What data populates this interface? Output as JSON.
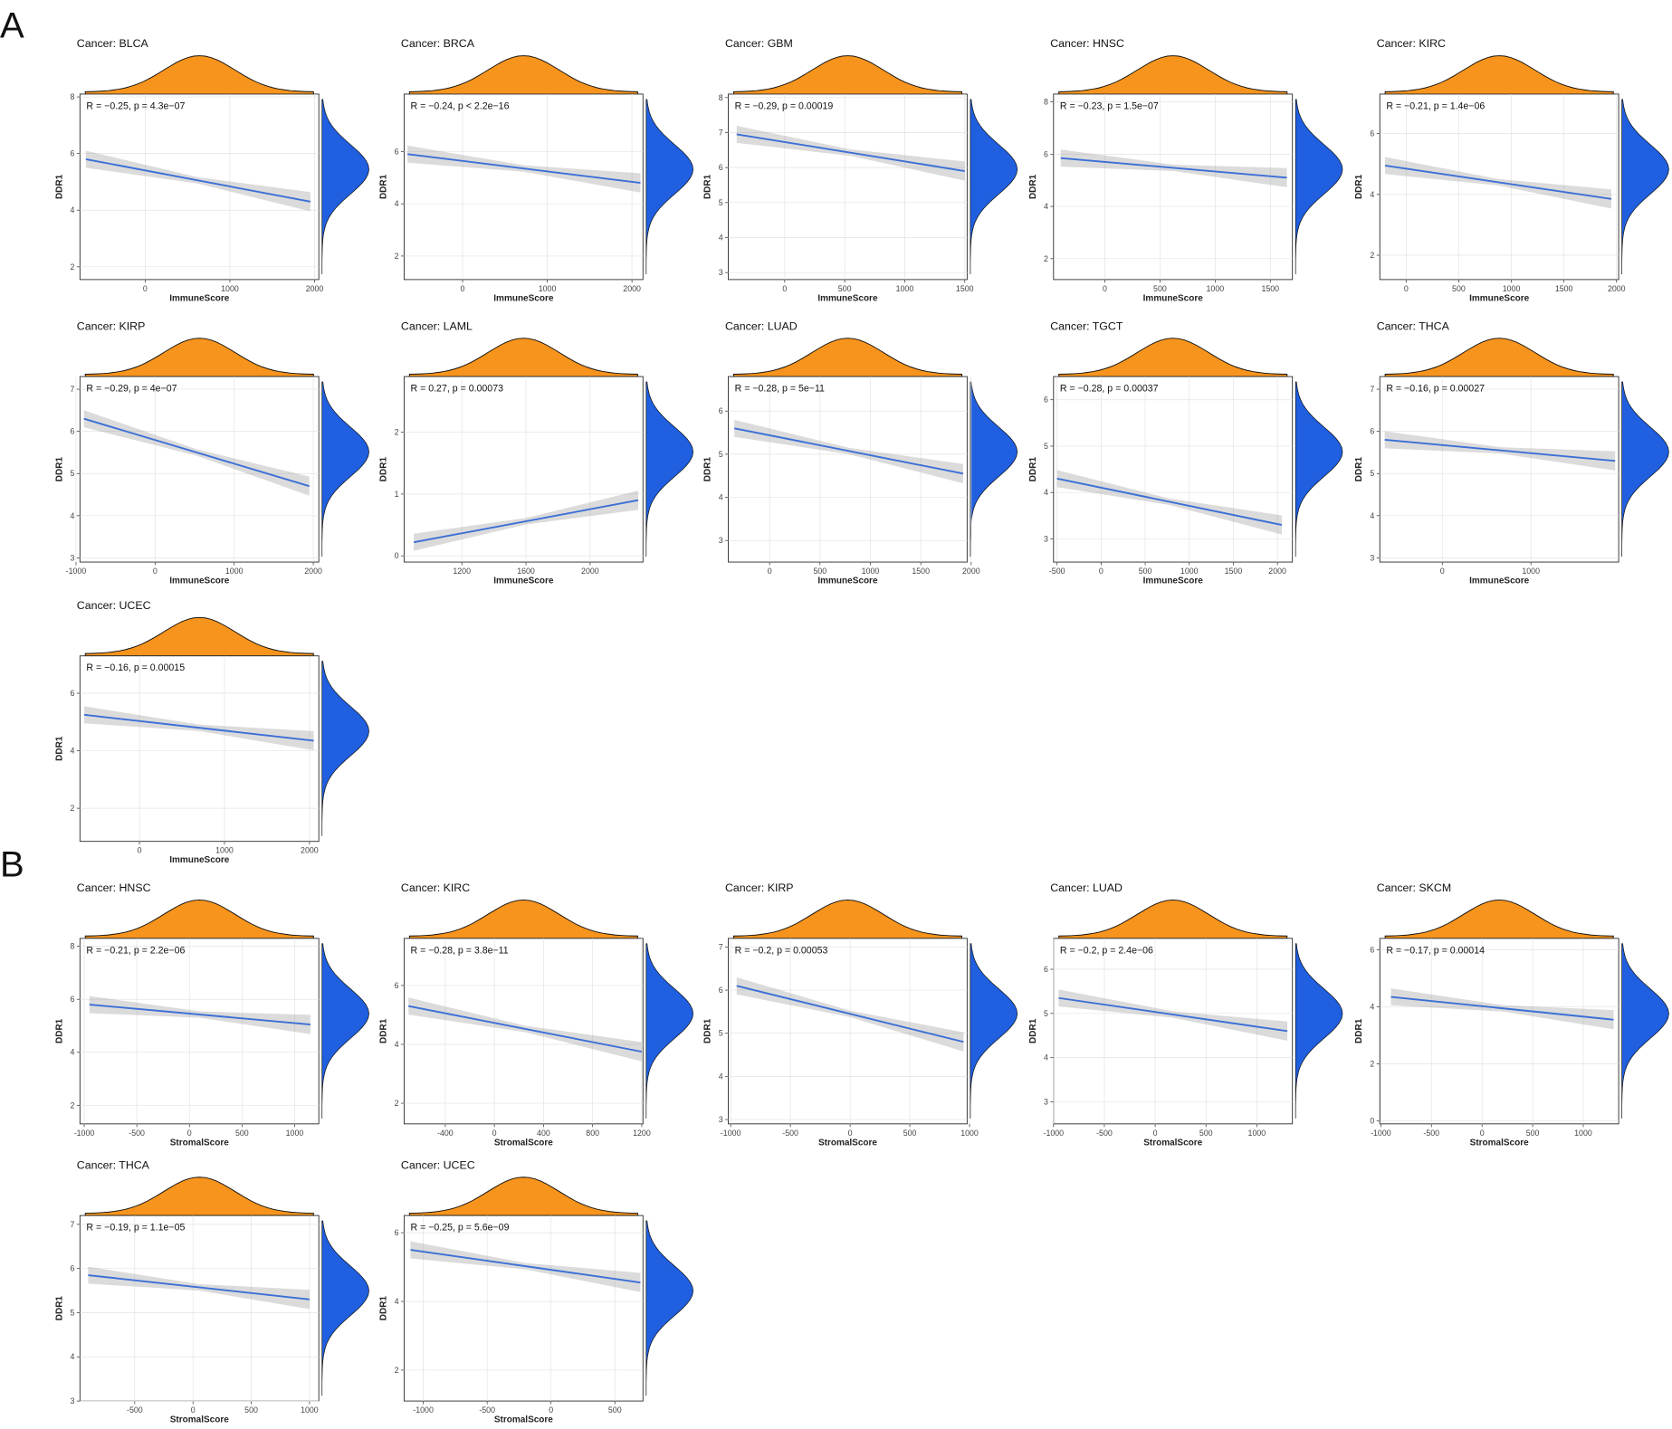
{
  "panel_labels": [
    "A",
    "B"
  ],
  "chart_data": [
    {
      "type": "scatter",
      "title": "Cancer: BLCA",
      "annotation": "R = −0.25, p = 4.3e−07",
      "xlabel": "ImmuneScore",
      "ylabel": "DDR1",
      "xlim": [
        -770,
        2050
      ],
      "ylim": [
        1.55,
        8.1
      ],
      "xticks": [
        0,
        1000,
        2000
      ],
      "yticks": [
        2,
        4,
        6,
        8
      ],
      "fit": {
        "x": [
          -700,
          1950
        ],
        "y": [
          5.8,
          4.3
        ]
      }
    },
    {
      "type": "scatter",
      "title": "Cancer: BRCA",
      "annotation": "R = −0.24, p < 2.2e−16",
      "xlabel": "ImmuneScore",
      "ylabel": "DDR1",
      "xlim": [
        -690,
        2130
      ],
      "ylim": [
        1.1,
        8.2
      ],
      "xticks": [
        0,
        1000,
        2000
      ],
      "yticks": [
        2,
        4,
        6
      ],
      "fit": {
        "x": [
          -650,
          2100
        ],
        "y": [
          5.9,
          4.8
        ]
      }
    },
    {
      "type": "scatter",
      "title": "Cancer: GBM",
      "annotation": "R = −0.29, p = 0.00019",
      "xlabel": "ImmuneScore",
      "ylabel": "DDR1",
      "xlim": [
        -470,
        1520
      ],
      "ylim": [
        2.8,
        8.1
      ],
      "xticks": [
        0,
        500,
        1000,
        1500
      ],
      "yticks": [
        3,
        4,
        5,
        6,
        7,
        8
      ],
      "fit": {
        "x": [
          -400,
          1500
        ],
        "y": [
          6.95,
          5.9
        ]
      }
    },
    {
      "type": "scatter",
      "title": "Cancer: HNSC",
      "annotation": "R = −0.23, p = 1.5e−07",
      "xlabel": "ImmuneScore",
      "ylabel": "DDR1",
      "xlim": [
        -465,
        1700
      ],
      "ylim": [
        1.2,
        8.3
      ],
      "xticks": [
        0,
        500,
        1000,
        1500
      ],
      "yticks": [
        2,
        4,
        6,
        8
      ],
      "fit": {
        "x": [
          -400,
          1650
        ],
        "y": [
          5.85,
          5.1
        ]
      }
    },
    {
      "type": "scatter",
      "title": "Cancer: KIRC",
      "annotation": "R = −0.21, p = 1.4e−06",
      "xlabel": "ImmuneScore",
      "ylabel": "DDR1",
      "xlim": [
        -250,
        2020
      ],
      "ylim": [
        1.2,
        7.3
      ],
      "xticks": [
        0,
        500,
        1000,
        1500,
        2000
      ],
      "yticks": [
        2,
        4,
        6
      ],
      "fit": {
        "x": [
          -200,
          1950
        ],
        "y": [
          4.95,
          3.85
        ]
      }
    },
    {
      "type": "scatter",
      "title": "Cancer: KIRP",
      "annotation": "R = −0.29, p = 4e−07",
      "xlabel": "ImmuneScore",
      "ylabel": "DDR1",
      "xlim": [
        -950,
        2070
      ],
      "ylim": [
        2.9,
        7.3
      ],
      "xticks": [
        -1000,
        0,
        1000,
        2000
      ],
      "yticks": [
        3,
        4,
        5,
        6,
        7
      ],
      "fit": {
        "x": [
          -900,
          1950
        ],
        "y": [
          6.3,
          4.7
        ]
      }
    },
    {
      "type": "scatter",
      "title": "Cancer: LAML",
      "annotation": "R = 0.27, p = 0.00073",
      "xlabel": "ImmuneScore",
      "ylabel": "DDR1",
      "xlim": [
        840,
        2330
      ],
      "ylim": [
        -0.1,
        2.9
      ],
      "xticks": [
        1200,
        1600,
        2000
      ],
      "yticks": [
        0,
        1,
        2
      ],
      "fit": {
        "x": [
          900,
          2300
        ],
        "y": [
          0.22,
          0.9
        ]
      }
    },
    {
      "type": "scatter",
      "title": "Cancer: LUAD",
      "annotation": "R = −0.28, p = 5e−11",
      "xlabel": "ImmuneScore",
      "ylabel": "DDR1",
      "xlim": [
        -410,
        1960
      ],
      "ylim": [
        2.5,
        6.8
      ],
      "xticks": [
        0,
        500,
        1000,
        1500,
        2000
      ],
      "yticks": [
        3,
        4,
        5,
        6
      ],
      "fit": {
        "x": [
          -350,
          1920
        ],
        "y": [
          5.6,
          4.55
        ]
      }
    },
    {
      "type": "scatter",
      "title": "Cancer: TGCT",
      "annotation": "R = −0.28, p = 0.00037",
      "xlabel": "ImmuneScore",
      "ylabel": "DDR1",
      "xlim": [
        -540,
        2170
      ],
      "ylim": [
        2.5,
        6.5
      ],
      "xticks": [
        -500,
        0,
        500,
        1000,
        1500,
        2000
      ],
      "yticks": [
        3,
        4,
        5,
        6
      ],
      "fit": {
        "x": [
          -500,
          2050
        ],
        "y": [
          4.3,
          3.3
        ]
      }
    },
    {
      "type": "scatter",
      "title": "Cancer: THCA",
      "annotation": "R = −0.16, p = 0.00027",
      "xlabel": "ImmuneScore",
      "ylabel": "DDR1",
      "xlim": [
        -705,
        1990
      ],
      "ylim": [
        2.9,
        7.3
      ],
      "xticks": [
        0,
        1000
      ],
      "yticks": [
        3,
        4,
        5,
        6,
        7
      ],
      "fit": {
        "x": [
          -650,
          1950
        ],
        "y": [
          5.8,
          5.3
        ]
      }
    },
    {
      "type": "scatter",
      "title": "Cancer: UCEC",
      "annotation": "R = −0.16, p = 0.00015",
      "xlabel": "ImmuneScore",
      "ylabel": "DDR1",
      "xlim": [
        -700,
        2110
      ],
      "ylim": [
        0.85,
        7.3
      ],
      "xticks": [
        0,
        1000,
        2000
      ],
      "yticks": [
        2,
        4,
        6
      ],
      "fit": {
        "x": [
          -650,
          2050
        ],
        "y": [
          5.25,
          4.35
        ]
      }
    },
    {
      "type": "scatter",
      "title": "Cancer: HNSC",
      "annotation": "R = −0.21, p = 2.2e−06",
      "xlabel": "StromalScore",
      "ylabel": "DDR1",
      "xlim": [
        -1040,
        1230
      ],
      "ylim": [
        1.3,
        8.3
      ],
      "xticks": [
        -1000,
        -500,
        0,
        500,
        1000
      ],
      "yticks": [
        2,
        4,
        6,
        8
      ],
      "fit": {
        "x": [
          -950,
          1150
        ],
        "y": [
          5.8,
          5.05
        ]
      }
    },
    {
      "type": "scatter",
      "title": "Cancer: KIRC",
      "annotation": "R = −0.28, p = 3.8e−11",
      "xlabel": "StromalScore",
      "ylabel": "DDR1",
      "xlim": [
        -735,
        1210
      ],
      "ylim": [
        1.3,
        7.6
      ],
      "xticks": [
        -400,
        0,
        400,
        800,
        1200
      ],
      "yticks": [
        2,
        4,
        6
      ],
      "fit": {
        "x": [
          -700,
          1200
        ],
        "y": [
          5.3,
          3.75
        ]
      }
    },
    {
      "type": "scatter",
      "title": "Cancer: KIRP",
      "annotation": "R = −0.2, p = 0.00053",
      "xlabel": "StromalScore",
      "ylabel": "DDR1",
      "xlim": [
        -1020,
        980
      ],
      "ylim": [
        2.9,
        7.2
      ],
      "xticks": [
        -1000,
        -500,
        0,
        500,
        1000
      ],
      "yticks": [
        3,
        4,
        5,
        6,
        7
      ],
      "fit": {
        "x": [
          -950,
          950
        ],
        "y": [
          6.1,
          4.8
        ]
      }
    },
    {
      "type": "scatter",
      "title": "Cancer: LUAD",
      "annotation": "R = −0.2, p = 2.4e−06",
      "xlabel": "StromalScore",
      "ylabel": "DDR1",
      "xlim": [
        -1000,
        1350
      ],
      "ylim": [
        2.5,
        6.7
      ],
      "xticks": [
        -1000,
        -500,
        0,
        500,
        1000
      ],
      "yticks": [
        3,
        4,
        5,
        6
      ],
      "fit": {
        "x": [
          -950,
          1300
        ],
        "y": [
          5.35,
          4.6
        ]
      }
    },
    {
      "type": "scatter",
      "title": "Cancer: SKCM",
      "annotation": "R = −0.17, p = 0.00014",
      "xlabel": "StromalScore",
      "ylabel": "DDR1",
      "xlim": [
        -1010,
        1350
      ],
      "ylim": [
        -0.1,
        6.4
      ],
      "xticks": [
        -1000,
        -500,
        0,
        500,
        1000
      ],
      "yticks": [
        0,
        2,
        4,
        6
      ],
      "fit": {
        "x": [
          -900,
          1300
        ],
        "y": [
          4.35,
          3.55
        ]
      }
    },
    {
      "type": "scatter",
      "title": "Cancer: THCA",
      "annotation": "R = −0.19, p = 1.1e−05",
      "xlabel": "StromalScore",
      "ylabel": "DDR1",
      "xlim": [
        -970,
        1080
      ],
      "ylim": [
        3,
        7.2
      ],
      "xticks": [
        -500,
        0,
        500,
        1000
      ],
      "yticks": [
        3,
        4,
        5,
        6,
        7
      ],
      "fit": {
        "x": [
          -900,
          1000
        ],
        "y": [
          5.85,
          5.3
        ]
      }
    },
    {
      "type": "scatter",
      "title": "Cancer: UCEC",
      "annotation": "R = −0.25, p = 5.6e−09",
      "xlabel": "StromalScore",
      "ylabel": "DDR1",
      "xlim": [
        -1150,
        720
      ],
      "ylim": [
        1.1,
        6.5
      ],
      "xticks": [
        -1000,
        -500,
        0,
        500
      ],
      "yticks": [
        2,
        4,
        6
      ],
      "fit": {
        "x": [
          -1100,
          700
        ],
        "y": [
          5.5,
          4.55
        ]
      }
    }
  ]
}
